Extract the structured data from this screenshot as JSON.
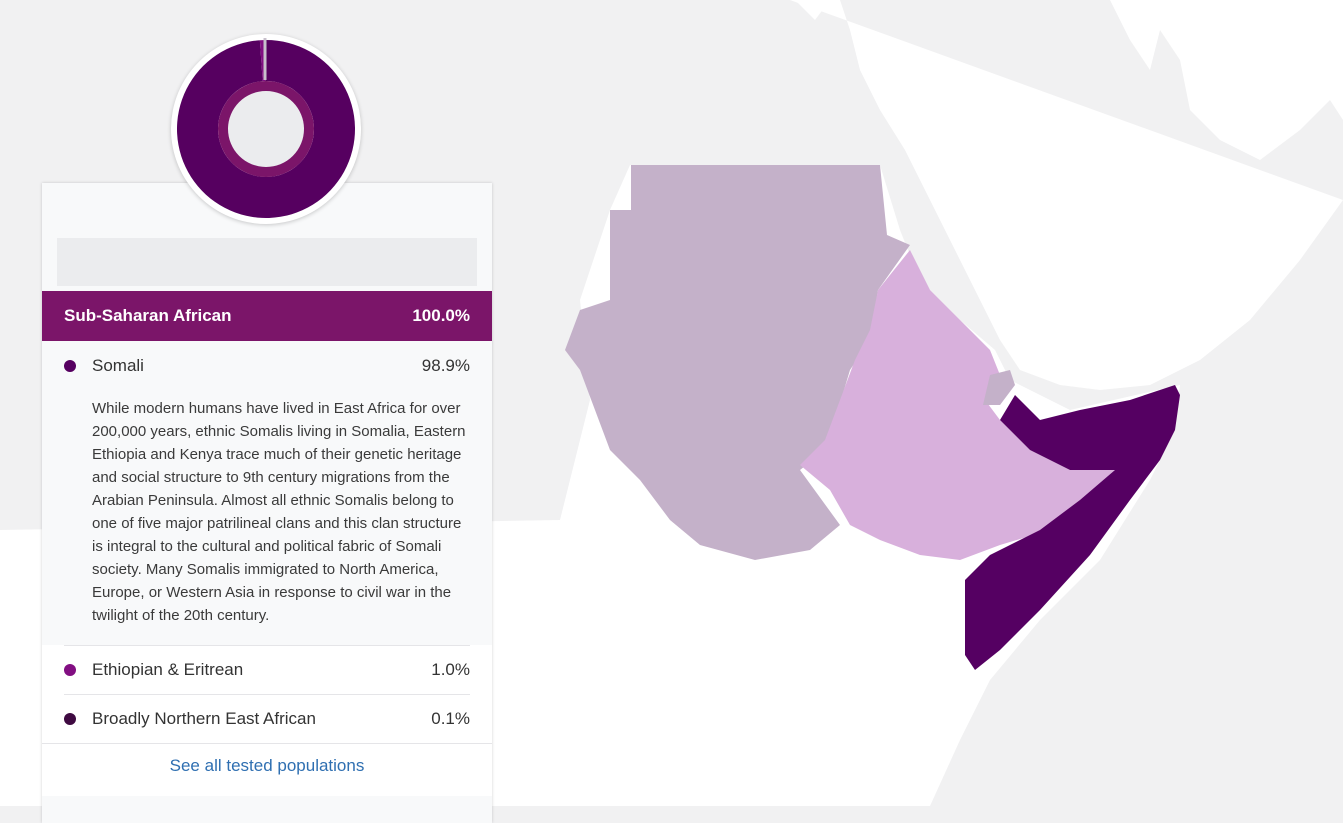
{
  "colors": {
    "somali": "#560060",
    "ethiopian_eritrean": "#820e82",
    "broadly_northern_east_african": "#3f0a41",
    "header": "#7b1569",
    "map_background": "#f1f1f2",
    "land": "#ffffff",
    "sudan_region": "#c4b1c9",
    "ethiopia_region": "#d8b0dc",
    "somalia_region": "#550062"
  },
  "region": {
    "name": "Sub-Saharan African",
    "percent": "100.0%"
  },
  "populations": [
    {
      "name": "Somali",
      "percent": "98.9%",
      "color_key": "somali",
      "expanded": true,
      "description": "While modern humans have lived in East Africa for over 200,000 years, ethnic Somalis living in Somalia, Eastern Ethiopia and Kenya trace much of their genetic heritage and social structure to 9th century migrations from the Arabian Peninsula. Almost all ethnic Somalis belong to one of five major patrilineal clans and this clan structure is integral to the cultural and political fabric of Somali society. Many Somalis immigrated to North America, Europe, or Western Asia in response to civil war in the twilight of the 20th century."
    },
    {
      "name": "Ethiopian & Eritrean",
      "percent": "1.0%",
      "color_key": "ethiopian_eritrean"
    },
    {
      "name": "Broadly Northern East African",
      "percent": "0.1%",
      "color_key": "broadly_northern_east_african"
    }
  ],
  "donut": {
    "segments": [
      {
        "name": "Somali",
        "value": 98.9,
        "color_key": "somali"
      },
      {
        "name": "Ethiopian & Eritrean",
        "value": 1.0,
        "color_key": "ethiopian_eritrean"
      },
      {
        "name": "Broadly Northern East African",
        "value": 0.1,
        "color_key": "broadly_northern_east_african"
      }
    ],
    "inner_ring_color": "#7b1569",
    "center_color": "#ebecee"
  },
  "links": {
    "see_all": "See all tested populations"
  }
}
